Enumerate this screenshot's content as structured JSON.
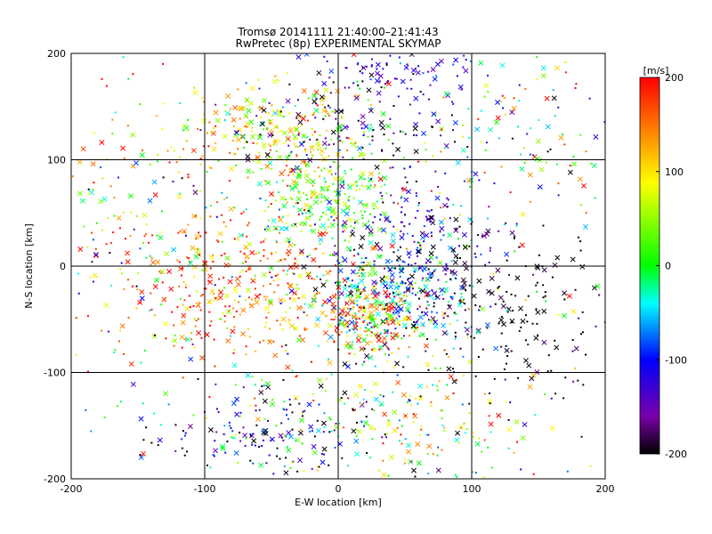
{
  "chart_data": {
    "type": "scatter",
    "title": "Tromsø 20141111 21:40:00–21:41:43",
    "subtitle": "RwPretec (8p) EXPERIMENTAL SKYMAP",
    "xlabel": "E-W location [km]",
    "ylabel": "N-S location [km]",
    "xlim": [
      -200,
      200
    ],
    "ylim": [
      -200,
      200
    ],
    "xticks": [
      "-200",
      "-100",
      "0",
      "100",
      "200"
    ],
    "yticks": [
      "-200",
      "-100",
      "0",
      "100",
      "200"
    ],
    "grid": true,
    "markers": [
      "dot",
      "x"
    ],
    "colorbar": {
      "label": "[m/s]",
      "range": [
        -200,
        200
      ],
      "ticks": [
        "200",
        "100",
        "0",
        "-100",
        "-200"
      ],
      "colormap": [
        "#000000",
        "#7a00aa",
        "#0000ff",
        "#00ffff",
        "#00ff00",
        "#ffff00",
        "#ff8000",
        "#ff0000"
      ]
    },
    "clusters": [
      {
        "x": -40,
        "y": 120,
        "sx": 40,
        "sy": 25,
        "n": 280,
        "v": 90,
        "sv": 60
      },
      {
        "x": -10,
        "y": 60,
        "sx": 25,
        "sy": 20,
        "n": 200,
        "v": 20,
        "sv": 45
      },
      {
        "x": -60,
        "y": -20,
        "sx": 55,
        "sy": 35,
        "n": 380,
        "v": 150,
        "sv": 60
      },
      {
        "x": 40,
        "y": -35,
        "sx": 30,
        "sy": 22,
        "n": 320,
        "v": -40,
        "sv": 60
      },
      {
        "x": 55,
        "y": 20,
        "sx": 35,
        "sy": 30,
        "n": 200,
        "v": -130,
        "sv": 50
      },
      {
        "x": 20,
        "y": -50,
        "sx": 20,
        "sy": 15,
        "n": 120,
        "v": 160,
        "sv": 50
      },
      {
        "x": 120,
        "y": -40,
        "sx": 55,
        "sy": 40,
        "n": 220,
        "v": -200,
        "sv": 20
      },
      {
        "x": 10,
        "y": 130,
        "sx": 45,
        "sy": 25,
        "n": 120,
        "v": -170,
        "sv": 50
      },
      {
        "x": 40,
        "y": 185,
        "sx": 35,
        "sy": 12,
        "n": 80,
        "v": -140,
        "sv": 40
      },
      {
        "x": -40,
        "y": -155,
        "sx": 45,
        "sy": 22,
        "n": 200,
        "v": -120,
        "sv": 100
      },
      {
        "x": 60,
        "y": -150,
        "sx": 45,
        "sy": 30,
        "n": 150,
        "v": 60,
        "sv": 90
      },
      {
        "x": -150,
        "y": 40,
        "sx": 40,
        "sy": 70,
        "n": 140,
        "v": 80,
        "sv": 120
      },
      {
        "x": 140,
        "y": 130,
        "sx": 40,
        "sy": 45,
        "n": 110,
        "v": 30,
        "sv": 130
      },
      {
        "x": 0,
        "y": 0,
        "sx": 120,
        "sy": 120,
        "n": 350,
        "v": 0,
        "sv": 130
      }
    ]
  }
}
